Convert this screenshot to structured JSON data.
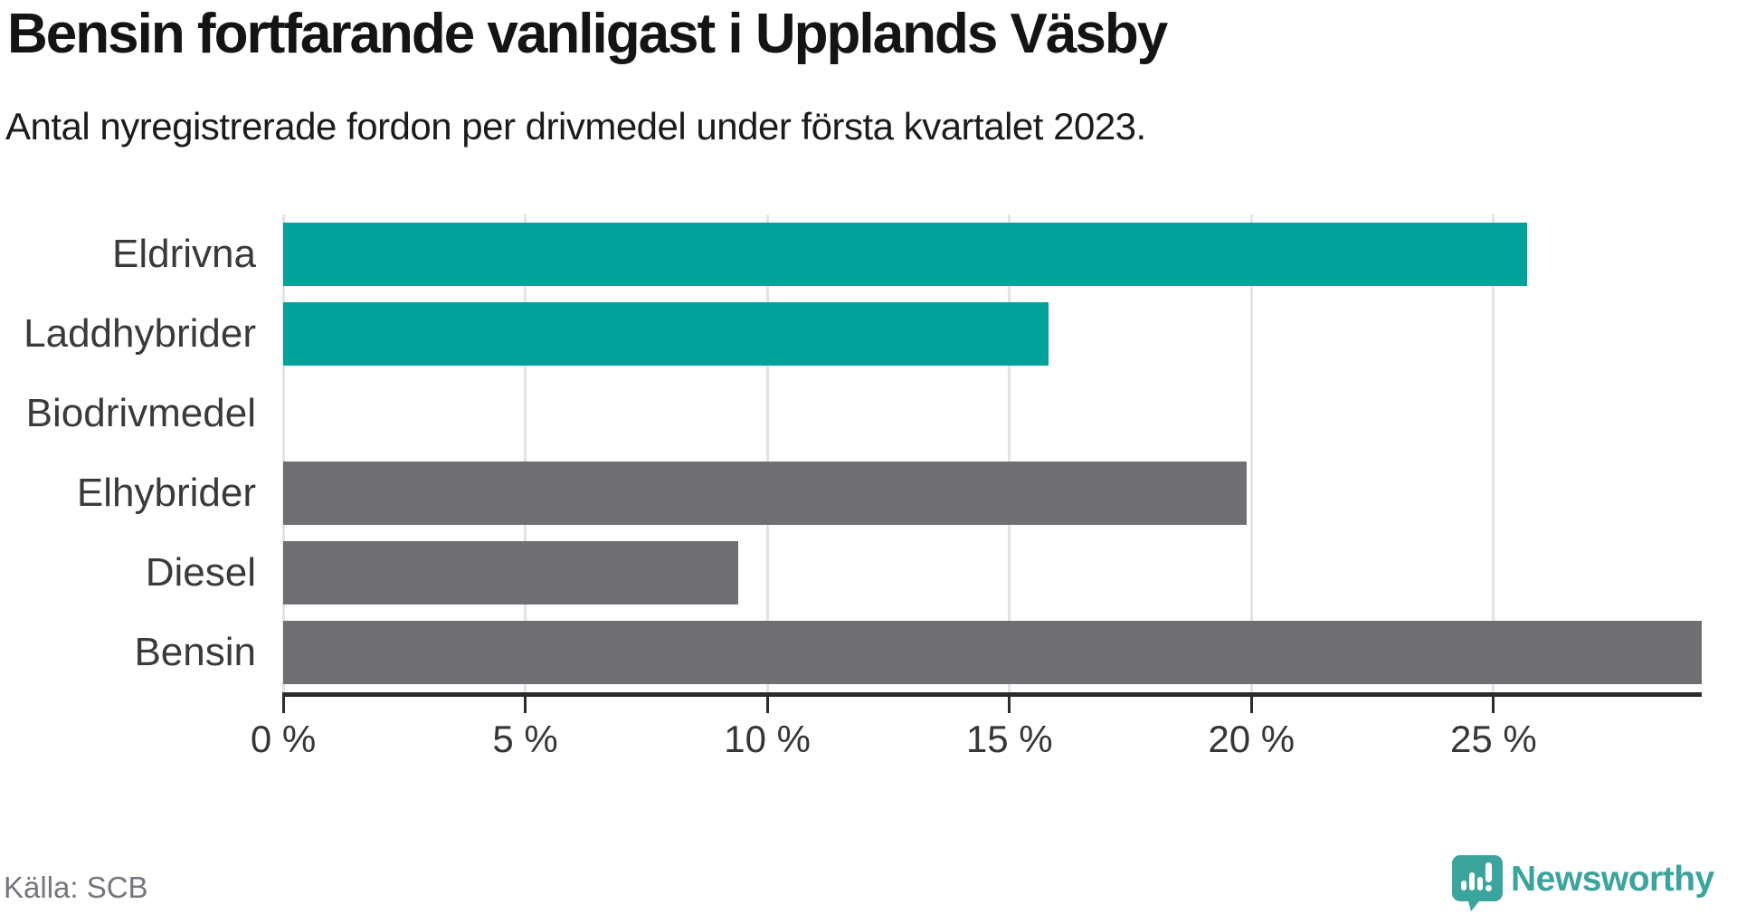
{
  "title": "Bensin fortfarande vanligast i Upplands Väsby",
  "subtitle": "Antal nyregistrerade fordon per drivmedel under första kvartalet 2023.",
  "source": "Källa: SCB",
  "brand": {
    "name": "Newsworthy"
  },
  "colors": {
    "highlight_bar": "#00A29A",
    "default_bar": "#6E6E73",
    "axis": "#2B2B2B",
    "gridline": "#E3E3E3",
    "brand_teal": "#3BA49C",
    "title_text": "#141414",
    "muted_text": "#75757D"
  },
  "chart_data": {
    "type": "bar",
    "orientation": "horizontal",
    "title": "Bensin fortfarande vanligast i Upplands Väsby",
    "subtitle": "Antal nyregistrerade fordon per drivmedel under första kvartalet 2023.",
    "categories": [
      "Eldrivna",
      "Laddhybrider",
      "Biodrivmedel",
      "Elhybrider",
      "Diesel",
      "Bensin"
    ],
    "values": [
      25.7,
      15.8,
      0,
      19.9,
      9.4,
      29.3
    ],
    "unit": "%",
    "bar_colors": [
      "#00A29A",
      "#00A29A",
      "#6E6E73",
      "#6E6E73",
      "#6E6E73",
      "#6E6E73"
    ],
    "x_ticks": [
      0,
      5,
      10,
      15,
      20,
      25
    ],
    "x_tick_labels": [
      "0 %",
      "5 %",
      "10 %",
      "15 %",
      "20 %",
      "25 %"
    ],
    "xlim": [
      0,
      29.3
    ],
    "grid": "vertical-gridlines",
    "legend": "none",
    "source_label": "Källa: SCB"
  }
}
